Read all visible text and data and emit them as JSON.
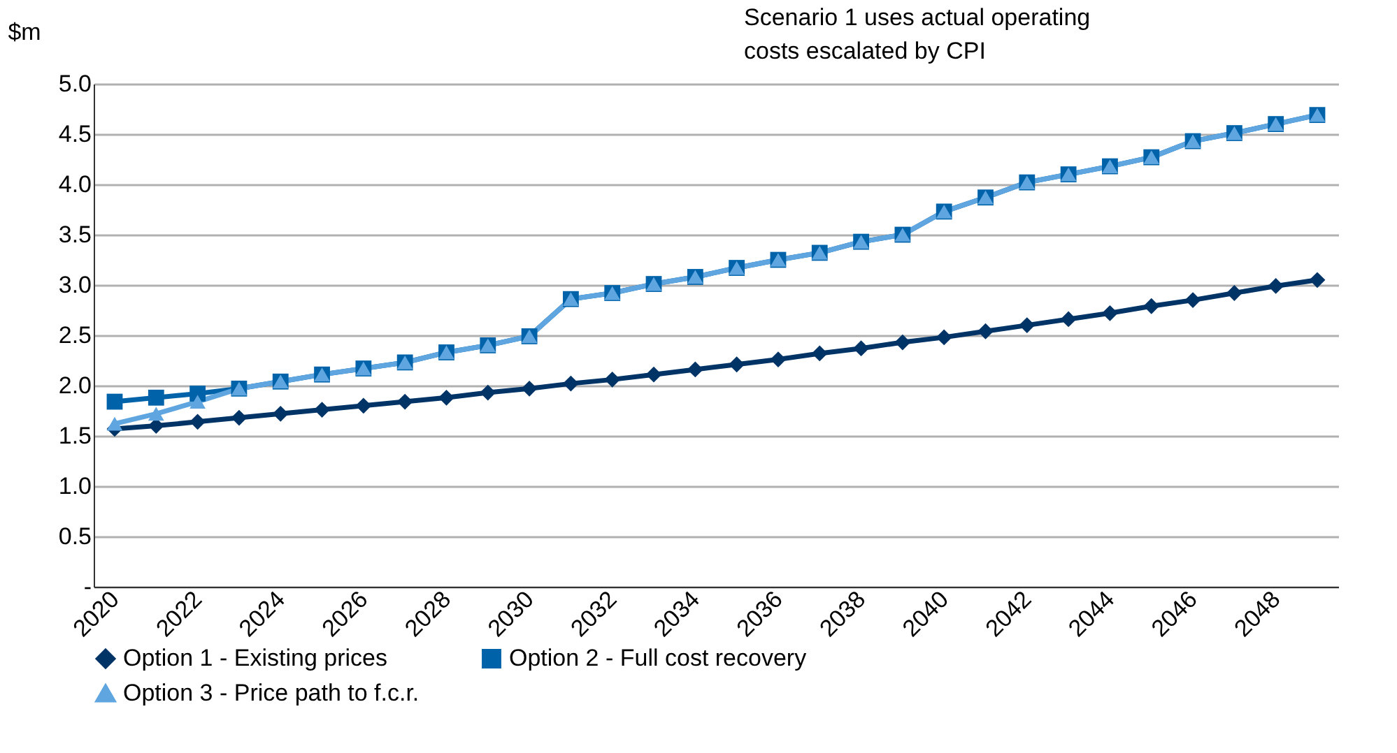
{
  "chart_data": {
    "type": "line",
    "ylabel": "$m",
    "categories": [
      "2020",
      null,
      "2022",
      null,
      "2024",
      null,
      "2026",
      null,
      "2028",
      null,
      "2030",
      null,
      "2032",
      null,
      "2034",
      null,
      "2036",
      null,
      "2038",
      null,
      "2040",
      null,
      "2042",
      null,
      "2044",
      null,
      "2046",
      null,
      "2048",
      null
    ],
    "series": [
      {
        "name": "Option 1 - Existing prices",
        "color": "#003366",
        "marker": "diamond",
        "values": [
          1.57,
          1.6,
          1.64,
          1.68,
          1.72,
          1.76,
          1.8,
          1.84,
          1.88,
          1.93,
          1.97,
          2.02,
          2.06,
          2.11,
          2.16,
          2.21,
          2.26,
          2.32,
          2.37,
          2.43,
          2.48,
          2.54,
          2.6,
          2.66,
          2.72,
          2.79,
          2.85,
          2.92,
          2.99,
          3.05
        ]
      },
      {
        "name": "Option 2 - Full cost recovery",
        "color": "#0063aa",
        "marker": "square",
        "values": [
          1.84,
          1.88,
          1.92,
          1.97,
          2.04,
          2.11,
          2.17,
          2.23,
          2.33,
          2.4,
          2.49,
          2.86,
          2.92,
          3.01,
          3.08,
          3.17,
          3.25,
          3.32,
          3.43,
          3.5,
          3.73,
          3.87,
          4.02,
          4.1,
          4.18,
          4.27,
          4.43,
          4.51,
          4.6,
          4.69
        ]
      },
      {
        "name": "Option 3 - Price path to f.c.r.",
        "color": "#5fa5e0",
        "marker": "triangle",
        "values": [
          1.62,
          1.72,
          1.84,
          1.97,
          2.04,
          2.11,
          2.17,
          2.23,
          2.33,
          2.4,
          2.49,
          2.86,
          2.92,
          3.01,
          3.08,
          3.17,
          3.25,
          3.32,
          3.43,
          3.5,
          3.73,
          3.87,
          4.02,
          4.1,
          4.18,
          4.27,
          4.43,
          4.51,
          4.6,
          4.69
        ]
      }
    ],
    "ylim": [
      0,
      5
    ],
    "yticks": [
      {
        "value": 0,
        "label": "-"
      },
      0.5,
      {
        "value": 1,
        "label": "1.0"
      },
      1.5,
      {
        "value": 2,
        "label": "2.0"
      },
      2.5,
      {
        "value": 3,
        "label": "3.0"
      },
      3.5,
      {
        "value": 4,
        "label": "4.0"
      },
      4.5,
      {
        "value": 5,
        "label": "5.0"
      }
    ],
    "grid": "y",
    "legend": "bottom",
    "line_style": "solid",
    "annotations": [
      "Scenario 1 uses actual operating costs escalated by CPI"
    ]
  }
}
